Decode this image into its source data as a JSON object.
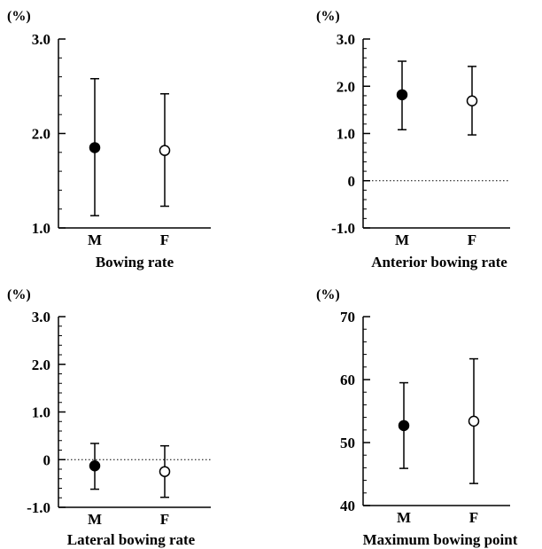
{
  "chart_data": [
    {
      "type": "errorbar",
      "title": "Bowing rate",
      "ylabel": "(%)",
      "ylim": [
        1.0,
        3.0
      ],
      "yticks": [
        "1.0",
        "2.0",
        "3.0"
      ],
      "zero_line": false,
      "categories": [
        "M",
        "F"
      ],
      "series": [
        {
          "category": "M",
          "marker": "filled",
          "mean": 1.85,
          "low": 1.13,
          "high": 2.58
        },
        {
          "category": "F",
          "marker": "open",
          "mean": 1.82,
          "low": 1.23,
          "high": 2.42
        }
      ]
    },
    {
      "type": "errorbar",
      "title": "Anterior bowing rate",
      "ylabel": "(%)",
      "ylim": [
        -1.0,
        3.0
      ],
      "yticks": [
        "-1.0",
        "0",
        "1.0",
        "2.0",
        "3.0"
      ],
      "zero_line": true,
      "categories": [
        "M",
        "F"
      ],
      "series": [
        {
          "category": "M",
          "marker": "filled",
          "mean": 1.82,
          "low": 1.08,
          "high": 2.53
        },
        {
          "category": "F",
          "marker": "open",
          "mean": 1.69,
          "low": 0.97,
          "high": 2.42
        }
      ]
    },
    {
      "type": "errorbar",
      "title": "Lateral bowing rate",
      "ylabel": "(%)",
      "ylim": [
        -1.0,
        3.0
      ],
      "yticks": [
        "-1.0",
        "0",
        "1.0",
        "2.0",
        "3.0"
      ],
      "zero_line": true,
      "categories": [
        "M",
        "F"
      ],
      "series": [
        {
          "category": "M",
          "marker": "filled",
          "mean": -0.13,
          "low": -0.62,
          "high": 0.34
        },
        {
          "category": "F",
          "marker": "open",
          "mean": -0.25,
          "low": -0.79,
          "high": 0.29
        }
      ]
    },
    {
      "type": "errorbar",
      "title": "Maximum bowing point",
      "ylabel": "(%)",
      "ylim": [
        40,
        70
      ],
      "yticks": [
        "40",
        "50",
        "60",
        "70"
      ],
      "zero_line": false,
      "categories": [
        "M",
        "F"
      ],
      "series": [
        {
          "category": "M",
          "marker": "filled",
          "mean": 52.7,
          "low": 45.9,
          "high": 59.5
        },
        {
          "category": "F",
          "marker": "open",
          "mean": 53.4,
          "low": 43.5,
          "high": 63.3
        }
      ]
    }
  ]
}
